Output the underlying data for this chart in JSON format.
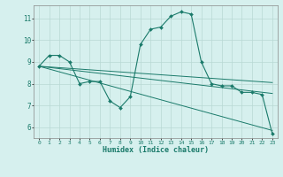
{
  "title": "",
  "xlabel": "Humidex (Indice chaleur)",
  "background_color": "#d6f0ee",
  "line_color": "#1a7a6a",
  "grid_color": "#b8d8d4",
  "xlim": [
    -0.5,
    23.5
  ],
  "ylim": [
    5.5,
    11.6
  ],
  "yticks": [
    6,
    7,
    8,
    9,
    10,
    11
  ],
  "xticks": [
    0,
    1,
    2,
    3,
    4,
    5,
    6,
    7,
    8,
    9,
    10,
    11,
    12,
    13,
    14,
    15,
    16,
    17,
    18,
    19,
    20,
    21,
    22,
    23
  ],
  "series": [
    {
      "x": [
        0,
        1,
        2,
        3,
        4,
        5,
        6,
        7,
        8,
        9,
        10,
        11,
        12,
        13,
        14,
        15,
        16,
        17,
        18,
        19,
        20,
        21,
        22,
        23
      ],
      "y": [
        8.8,
        9.3,
        9.3,
        9.0,
        8.0,
        8.1,
        8.1,
        7.2,
        6.9,
        7.4,
        9.8,
        10.5,
        10.6,
        11.1,
        11.3,
        11.2,
        9.0,
        8.0,
        7.9,
        7.9,
        7.6,
        7.6,
        7.5,
        5.7
      ]
    },
    {
      "x": [
        0,
        23
      ],
      "y": [
        8.8,
        8.05
      ]
    },
    {
      "x": [
        0,
        23
      ],
      "y": [
        8.8,
        7.55
      ]
    },
    {
      "x": [
        0,
        23
      ],
      "y": [
        8.8,
        5.85
      ]
    }
  ]
}
